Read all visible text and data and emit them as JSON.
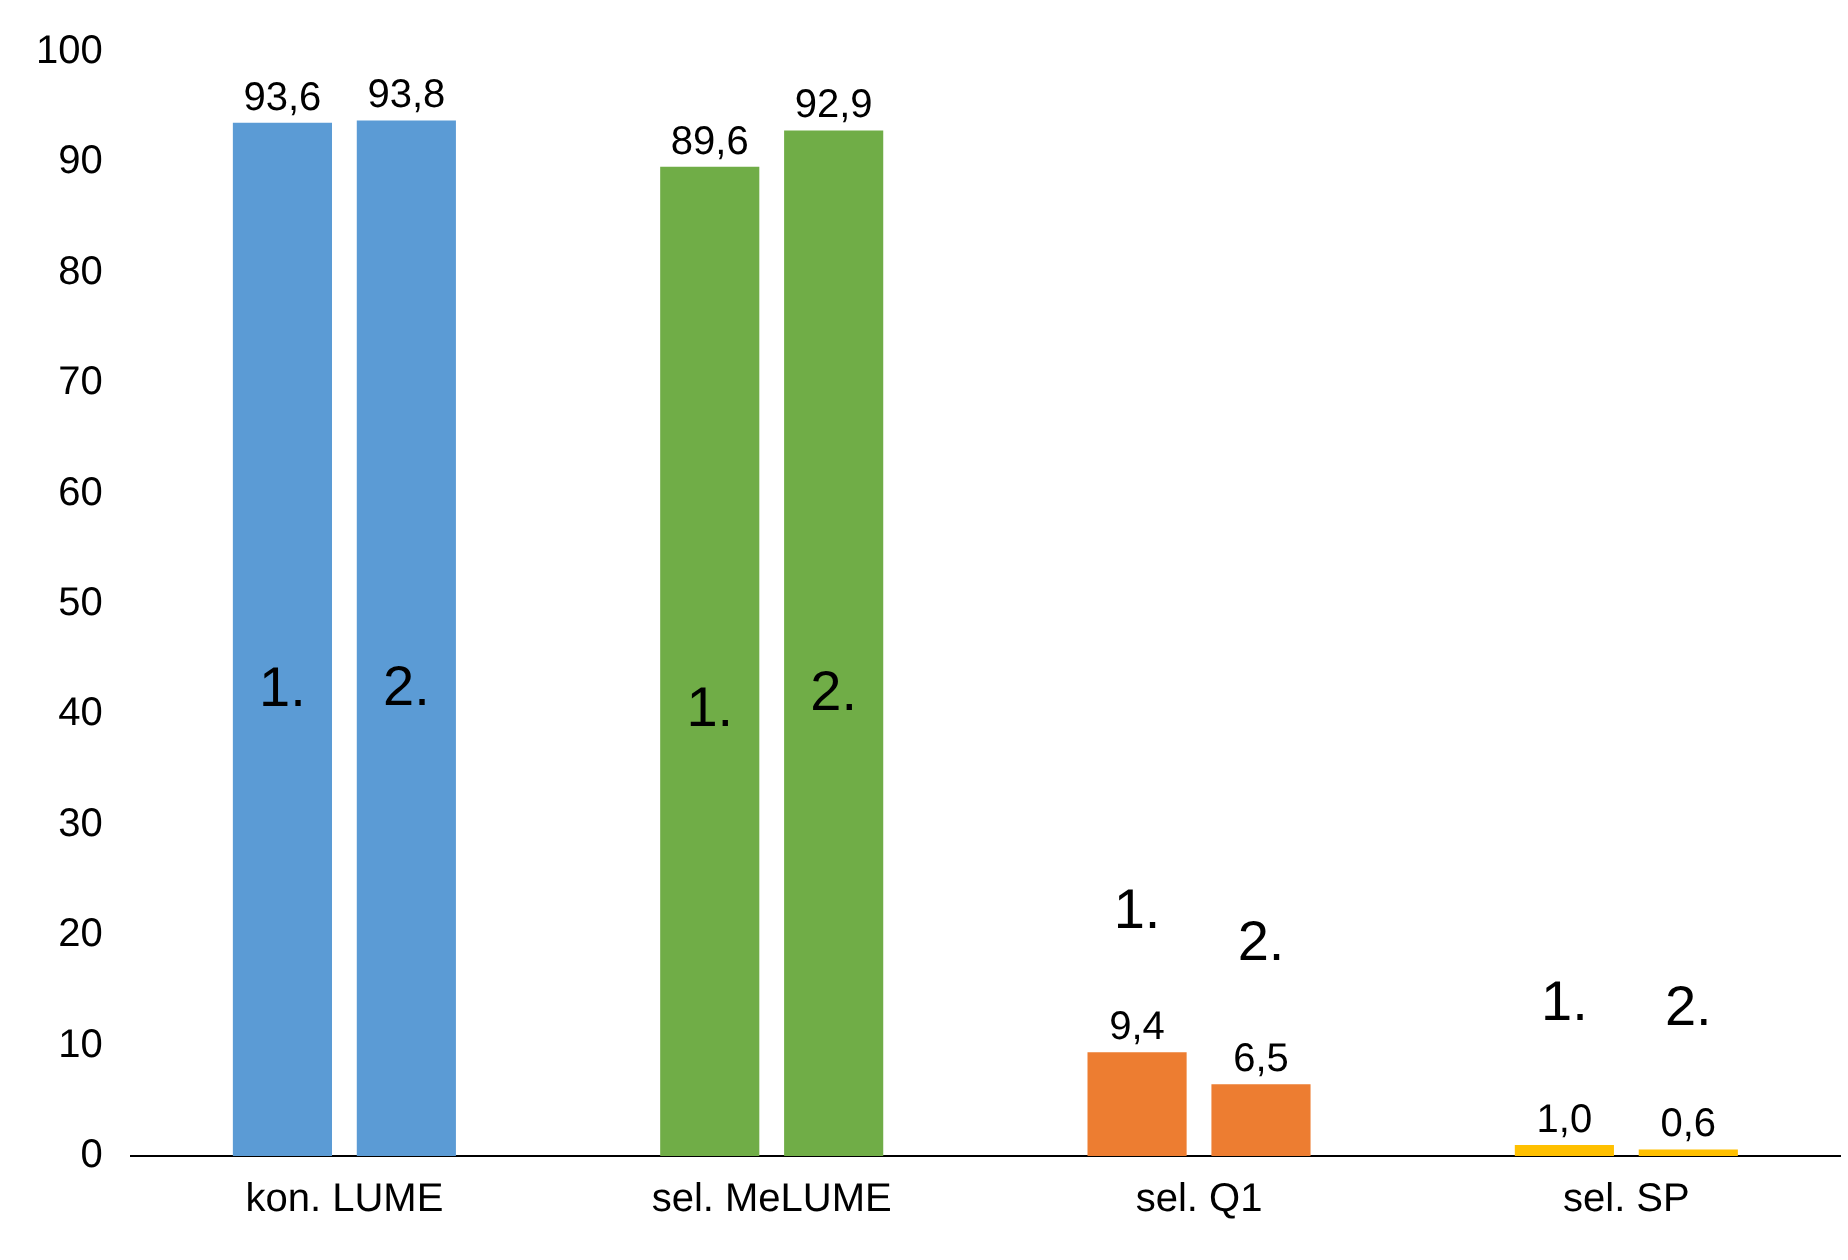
{
  "chart_data": {
    "type": "bar",
    "categories": [
      "kon. LUME",
      "sel. MeLUME",
      "sel. Q1",
      "sel. SP"
    ],
    "series": [
      {
        "name": "1.",
        "colors": [
          "#5b9bd5",
          "#70ad47",
          "#ed7d31",
          "#ffc000"
        ],
        "values": [
          93.6,
          89.6,
          9.4,
          1.0
        ],
        "value_labels": [
          "93,6",
          "89,6",
          "9,4",
          "1,0"
        ]
      },
      {
        "name": "2.",
        "colors": [
          "#5b9bd5",
          "#70ad47",
          "#ed7d31",
          "#ffc000"
        ],
        "values": [
          93.8,
          92.9,
          6.5,
          0.6
        ],
        "value_labels": [
          "93,8",
          "92,9",
          "6,5",
          "0,6"
        ]
      }
    ],
    "ylim": [
      0,
      100
    ],
    "yticks": [
      0,
      10,
      20,
      30,
      40,
      50,
      60,
      70,
      80,
      90,
      100
    ],
    "grid": false,
    "legend": false
  }
}
